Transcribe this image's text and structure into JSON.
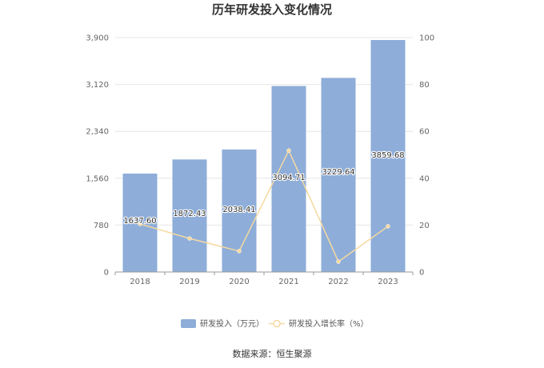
{
  "chart_data": {
    "type": "bar",
    "title": "历年研发投入变化情况",
    "categories": [
      "2018",
      "2019",
      "2020",
      "2021",
      "2022",
      "2023"
    ],
    "series": [
      {
        "name": "研发投入（万元）",
        "type": "bar",
        "axis": "left",
        "values": [
          1637.6,
          1872.43,
          2038.41,
          3094.71,
          3229.64,
          3859.68
        ],
        "labels": [
          "1637.60",
          "1872.43",
          "2038.41",
          "3094.71",
          "3229.64",
          "3859.68"
        ],
        "color": "#8eadd9"
      },
      {
        "name": "研发投入增长率（%）",
        "type": "line",
        "axis": "right",
        "values": [
          20.5,
          14.3,
          8.9,
          51.8,
          4.4,
          19.5
        ],
        "color": "#f5d9a0"
      }
    ],
    "y_left": {
      "ticks": [
        "0",
        "780",
        "1,560",
        "2,340",
        "3,120",
        "3,900"
      ],
      "range": [
        0,
        3900
      ]
    },
    "y_right": {
      "ticks": [
        "0",
        "20",
        "40",
        "60",
        "80",
        "100"
      ],
      "range": [
        0,
        100
      ]
    },
    "legend_position": "bottom",
    "grid": true
  },
  "source": "数据来源：恒生聚源"
}
